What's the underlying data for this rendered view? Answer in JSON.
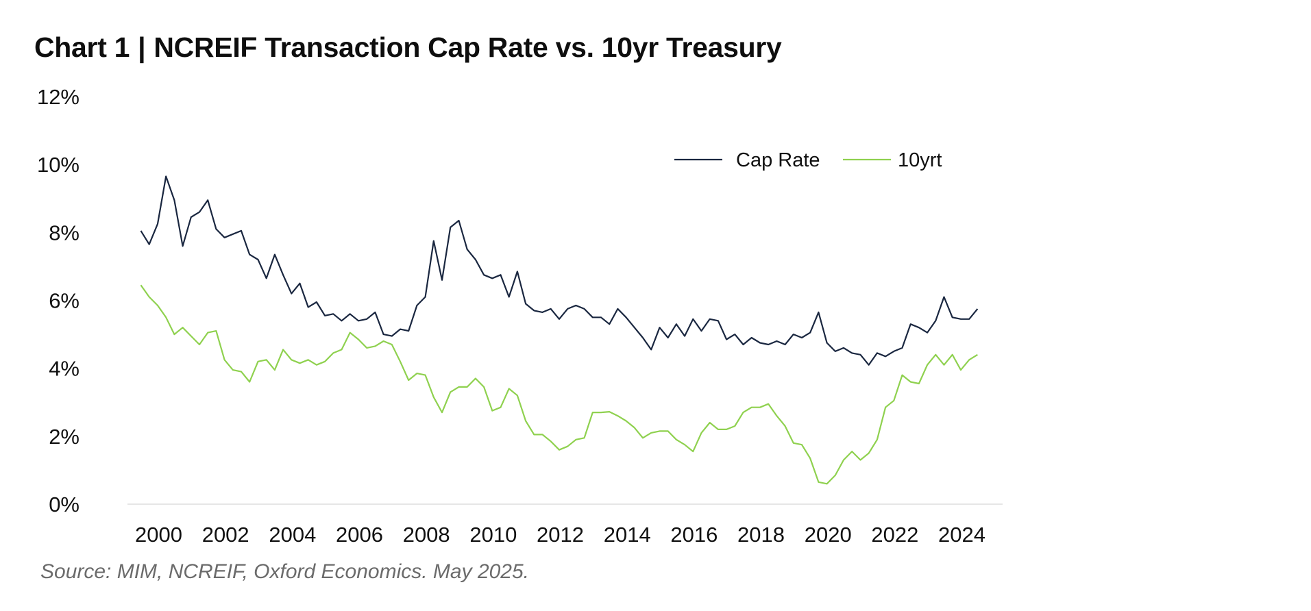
{
  "header": {
    "chart_label": "Chart 1",
    "separator": "|",
    "title_text": "NCREIF Transaction Cap Rate vs. 10yr Treasury"
  },
  "source": "Source: MIM, NCREIF, Oxford Economics. May 2025.",
  "colors": {
    "cap_rate": "#1a2740",
    "tenyr": "#8fd14f",
    "axis": "#e6e6e6"
  },
  "chart_data": {
    "type": "line",
    "title": "Chart 1 | NCREIF Transaction Cap Rate vs. 10yr Treasury",
    "xlabel": "",
    "ylabel": "",
    "xlim": [
      1999.6,
      2025.75
    ],
    "ylim": [
      0,
      12
    ],
    "y_ticks": [
      {
        "value": 0,
        "label": "0%"
      },
      {
        "value": 2,
        "label": "2%"
      },
      {
        "value": 4,
        "label": "4%"
      },
      {
        "value": 6,
        "label": "6%"
      },
      {
        "value": 8,
        "label": "8%"
      },
      {
        "value": 10,
        "label": "10%"
      },
      {
        "value": 12,
        "label": "12%"
      }
    ],
    "x_ticks": [
      {
        "value": 2000,
        "label": "2000"
      },
      {
        "value": 2002,
        "label": "2002"
      },
      {
        "value": 2004,
        "label": "2004"
      },
      {
        "value": 2006,
        "label": "2006"
      },
      {
        "value": 2008,
        "label": "2008"
      },
      {
        "value": 2010,
        "label": "2010"
      },
      {
        "value": 2012,
        "label": "2012"
      },
      {
        "value": 2014,
        "label": "2014"
      },
      {
        "value": 2016,
        "label": "2016"
      },
      {
        "value": 2018,
        "label": "2018"
      },
      {
        "value": 2020,
        "label": "2020"
      },
      {
        "value": 2022,
        "label": "2022"
      },
      {
        "value": 2024,
        "label": "2024"
      }
    ],
    "grid": false,
    "legend_position": "top-right",
    "x_start": 2000,
    "x_step": 0.25,
    "series": [
      {
        "name": "Cap Rate",
        "values": [
          8.05,
          7.65,
          8.25,
          9.65,
          8.95,
          7.6,
          8.45,
          8.6,
          8.95,
          8.1,
          7.85,
          7.95,
          8.05,
          7.35,
          7.2,
          6.65,
          7.35,
          6.75,
          6.2,
          6.5,
          5.8,
          5.95,
          5.55,
          5.6,
          5.4,
          5.6,
          5.4,
          5.45,
          5.65,
          5.0,
          4.95,
          5.15,
          5.1,
          5.85,
          6.1,
          7.75,
          6.6,
          8.15,
          8.35,
          7.5,
          7.2,
          6.75,
          6.65,
          6.75,
          6.1,
          6.85,
          5.9,
          5.7,
          5.65,
          5.75,
          5.45,
          5.75,
          5.85,
          5.75,
          5.5,
          5.5,
          5.3,
          5.75,
          5.5,
          5.2,
          4.9,
          4.55,
          5.2,
          4.9,
          5.3,
          4.95,
          5.45,
          5.1,
          5.45,
          5.4,
          4.85,
          5.0,
          4.7,
          4.9,
          4.75,
          4.7,
          4.8,
          4.7,
          5.0,
          4.9,
          5.05,
          5.65,
          4.75,
          4.5,
          4.6,
          4.45,
          4.4,
          4.1,
          4.45,
          4.35,
          4.5,
          4.6,
          5.3,
          5.2,
          5.05,
          5.4,
          6.1,
          5.5,
          5.45,
          5.45,
          5.75
        ]
      },
      {
        "name": "10yrt",
        "values": [
          6.45,
          6.1,
          5.85,
          5.5,
          5.0,
          5.2,
          4.95,
          4.7,
          5.05,
          5.1,
          4.25,
          3.95,
          3.9,
          3.6,
          4.2,
          4.25,
          3.95,
          4.55,
          4.25,
          4.15,
          4.25,
          4.1,
          4.2,
          4.45,
          4.55,
          5.05,
          4.85,
          4.6,
          4.65,
          4.8,
          4.7,
          4.2,
          3.65,
          3.85,
          3.8,
          3.15,
          2.7,
          3.3,
          3.45,
          3.45,
          3.7,
          3.45,
          2.75,
          2.85,
          3.4,
          3.2,
          2.45,
          2.05,
          2.05,
          1.85,
          1.6,
          1.7,
          1.9,
          1.95,
          2.7,
          2.7,
          2.72,
          2.6,
          2.45,
          2.25,
          1.95,
          2.1,
          2.15,
          2.15,
          1.9,
          1.75,
          1.55,
          2.1,
          2.4,
          2.2,
          2.2,
          2.3,
          2.7,
          2.85,
          2.85,
          2.95,
          2.6,
          2.3,
          1.8,
          1.75,
          1.35,
          0.65,
          0.6,
          0.85,
          1.3,
          1.55,
          1.3,
          1.5,
          1.9,
          2.85,
          3.05,
          3.8,
          3.6,
          3.55,
          4.1,
          4.4,
          4.1,
          4.4,
          3.95,
          4.25,
          4.4
        ]
      }
    ]
  }
}
